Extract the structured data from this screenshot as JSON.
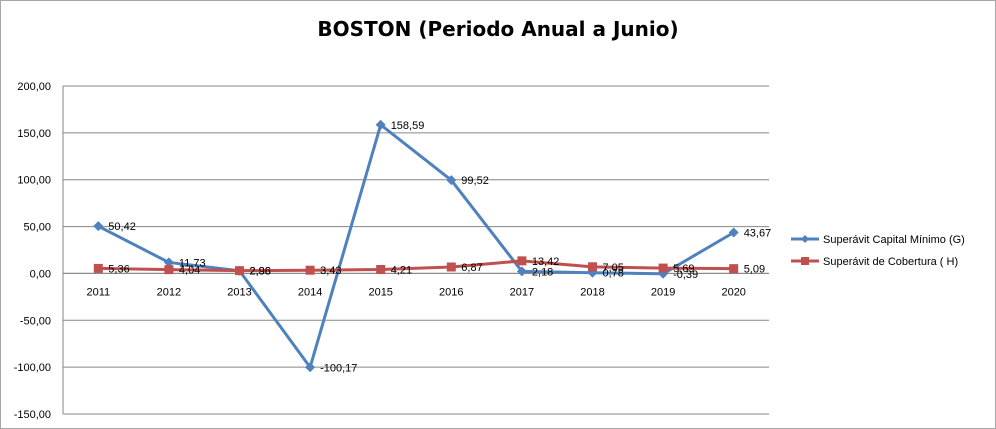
{
  "chart_data": {
    "type": "line",
    "title": "BOSTON (Periodo Anual a Junio)",
    "categories": [
      "2011",
      "2012",
      "2013",
      "2014",
      "2015",
      "2016",
      "2017",
      "2018",
      "2019",
      "2020"
    ],
    "ylim": [
      -150,
      200
    ],
    "yticks": [
      "200,00",
      "150,00",
      "100,00",
      "50,00",
      "0,00",
      "-50,00",
      "-100,00",
      "-150,00"
    ],
    "ytick_values": [
      200,
      150,
      100,
      50,
      0,
      -50,
      -100,
      -150
    ],
    "grid": true,
    "legend_position": "right",
    "series": [
      {
        "name": "Superávit Capital Mínimo  (G)",
        "color": "#4f81bd",
        "marker": "diamond",
        "values": [
          50.42,
          11.73,
          2.88,
          -100.17,
          158.59,
          99.52,
          2.18,
          0.78,
          -0.39,
          43.67
        ],
        "labels": [
          "50,42",
          "11,73",
          "2,88",
          "-100,17",
          "158,59",
          "99,52",
          "2,18",
          "0,78",
          "-0,39",
          "43,67"
        ]
      },
      {
        "name": "Superávit de Cobertura ( H)",
        "color": "#c0504d",
        "marker": "square",
        "values": [
          5.36,
          4.04,
          2.96,
          3.43,
          4.21,
          6.87,
          13.42,
          7.05,
          5.69,
          5.09
        ],
        "labels": [
          "5,36",
          "4,04",
          "2,96",
          "3,43",
          "4,21",
          "6,87",
          "13,42",
          "7,05",
          "5,69",
          "5,09"
        ]
      }
    ],
    "negative_label_color": "#ff0000"
  }
}
